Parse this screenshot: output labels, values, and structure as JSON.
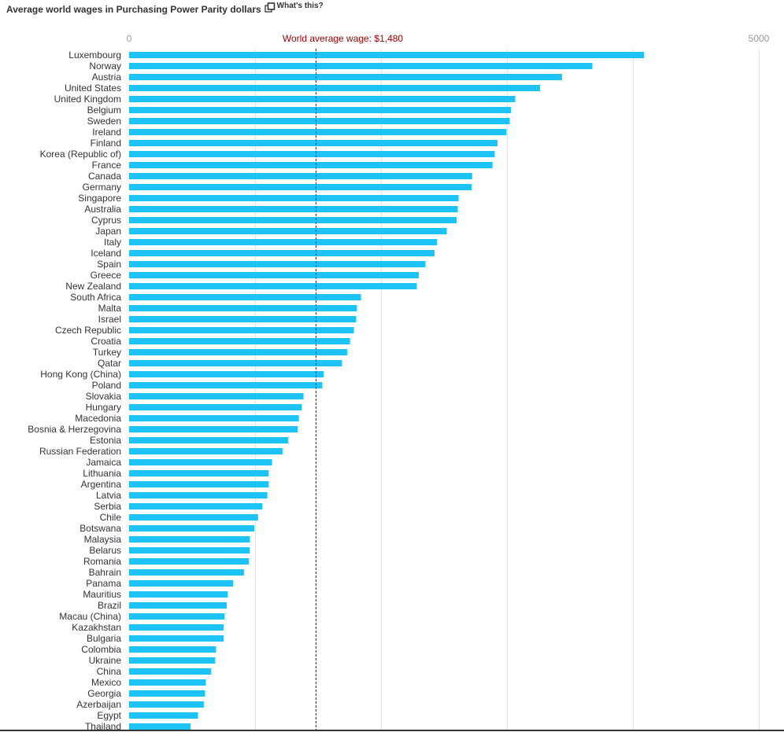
{
  "header": {
    "title": "Average world wages in Purchasing Power Parity dollars",
    "whats_this": "What's this?",
    "icon": "popout-icon"
  },
  "colors": {
    "bar": "#1ec3f5",
    "reference_line": "#a00000",
    "grid": "#e6e6e6",
    "axis_text": "#999999",
    "label_text": "#333333"
  },
  "chart_data": {
    "type": "bar",
    "orientation": "horizontal",
    "title": "Average world wages in Purchasing Power Parity dollars",
    "xlabel": "",
    "ylabel": "",
    "xlim": [
      0,
      5000
    ],
    "x_ticks": [
      0,
      5000
    ],
    "grid": true,
    "reference_line": {
      "value": 1480,
      "label": "World average wage: $1,480"
    },
    "categories": [
      "Luxembourg",
      "Norway",
      "Austria",
      "United States",
      "United Kingdom",
      "Belgium",
      "Sweden",
      "Ireland",
      "Finland",
      "Korea (Republic of)",
      "France",
      "Canada",
      "Germany",
      "Singapore",
      "Australia",
      "Cyprus",
      "Japan",
      "Italy",
      "Iceland",
      "Spain",
      "Greece",
      "New Zealand",
      "South Africa",
      "Malta",
      "Israel",
      "Czech Republic",
      "Croatia",
      "Turkey",
      "Qatar",
      "Hong Kong (China)",
      "Poland",
      "Slovakia",
      "Hungary",
      "Macedonia",
      "Bosnia & Herzegovina",
      "Estonia",
      "Russian Federation",
      "Jamaica",
      "Lithuania",
      "Argentina",
      "Latvia",
      "Serbia",
      "Chile",
      "Botswana",
      "Malaysia",
      "Belarus",
      "Romania",
      "Bahrain",
      "Panama",
      "Mauritius",
      "Brazil",
      "Macau (China)",
      "Kazakhstan",
      "Bulgaria",
      "Colombia",
      "Ukraine",
      "China",
      "Mexico",
      "Georgia",
      "Azerbaijan",
      "Egypt",
      "Thailand"
    ],
    "values": [
      4089,
      3678,
      3437,
      3263,
      3065,
      3031,
      3022,
      2997,
      2925,
      2903,
      2886,
      2724,
      2720,
      2616,
      2610,
      2601,
      2522,
      2445,
      2425,
      2353,
      2300,
      2284,
      1841,
      1808,
      1803,
      1785,
      1754,
      1732,
      1690,
      1545,
      1534,
      1385,
      1371,
      1348,
      1339,
      1264,
      1218,
      1135,
      1107,
      1107,
      1098,
      1058,
      1024,
      994,
      959,
      957,
      952,
      912,
      827,
      783,
      775,
      757,
      751,
      751,
      690,
      683,
      652,
      609,
      603,
      593,
      547,
      488
    ]
  }
}
